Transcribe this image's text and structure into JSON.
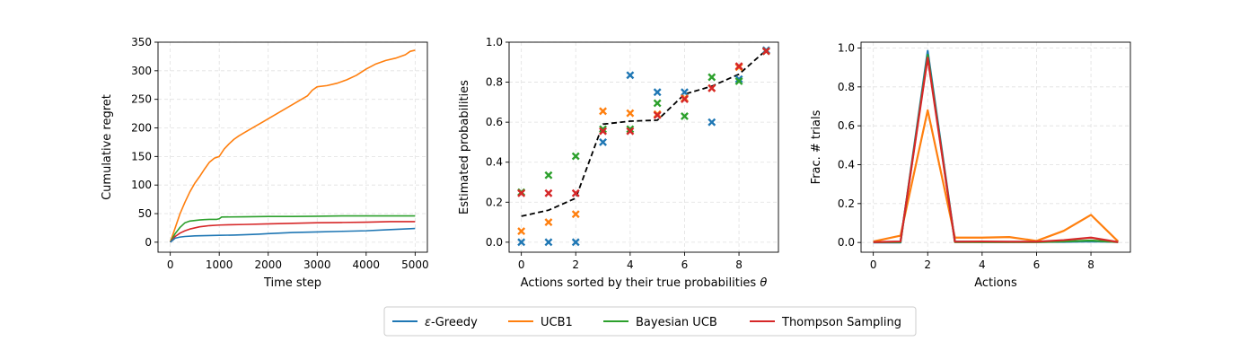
{
  "colors": {
    "eps_greedy": "#1f77b4",
    "ucb1": "#ff7f0e",
    "bayesian_ucb": "#2ca02c",
    "thompson": "#d62728",
    "true_prob": "#000000"
  },
  "legend": {
    "placement": "bottom-center",
    "entries": [
      {
        "key": "eps_greedy",
        "prefix": "ε",
        "label": "-Greedy"
      },
      {
        "key": "ucb1",
        "prefix": "",
        "label": "UCB1"
      },
      {
        "key": "bayesian_ucb",
        "prefix": "",
        "label": "Bayesian UCB"
      },
      {
        "key": "thompson",
        "prefix": "",
        "label": "Thompson Sampling"
      }
    ]
  },
  "chart_data": [
    {
      "type": "line",
      "xlabel": "Time step",
      "ylabel": "Cumulative regret",
      "xlim": [
        -250,
        5250
      ],
      "ylim": [
        -17.5,
        350
      ],
      "xticks": [
        "0",
        "1000",
        "2000",
        "3000",
        "4000",
        "5000"
      ],
      "xtick_values": [
        0,
        1000,
        2000,
        3000,
        4000,
        5000
      ],
      "yticks": [
        "0",
        "50",
        "100",
        "150",
        "200",
        "250",
        "300",
        "350"
      ],
      "ytick_values": [
        0,
        50,
        100,
        150,
        200,
        250,
        300,
        350
      ],
      "grid": true,
      "series": [
        {
          "key": "ucb1",
          "x": [
            0,
            100,
            200,
            300,
            400,
            500,
            600,
            700,
            800,
            900,
            1000,
            1100,
            1200,
            1300,
            1400,
            1500,
            1700,
            1900,
            2000,
            2200,
            2400,
            2600,
            2800,
            2900,
            3000,
            3200,
            3400,
            3600,
            3800,
            4000,
            4200,
            4400,
            4600,
            4800,
            4900,
            5000
          ],
          "y": [
            0,
            25,
            50,
            70,
            88,
            103,
            115,
            128,
            140,
            147,
            150,
            163,
            172,
            180,
            186,
            191,
            201,
            211,
            216,
            226,
            236,
            246,
            256,
            266,
            272,
            274,
            278,
            284,
            292,
            303,
            312,
            318,
            322,
            328,
            334,
            336
          ]
        },
        {
          "key": "bayesian_ucb",
          "x": [
            0,
            100,
            200,
            300,
            400,
            500,
            600,
            700,
            800,
            900,
            950,
            1000,
            1050,
            1500,
            2000,
            2500,
            3000,
            3500,
            4000,
            4500,
            5000
          ],
          "y": [
            0,
            15,
            26,
            34,
            37,
            38,
            39,
            39.5,
            40,
            40,
            40,
            41,
            44,
            44.5,
            45,
            45,
            45.5,
            46,
            46,
            46,
            46
          ]
        },
        {
          "key": "thompson",
          "x": [
            0,
            100,
            200,
            300,
            400,
            500,
            600,
            700,
            800,
            1000,
            1200,
            1500,
            2000,
            2500,
            3000,
            3500,
            4000,
            4500,
            5000
          ],
          "y": [
            0,
            10,
            16,
            20,
            23,
            25,
            27,
            28,
            29,
            30,
            30.5,
            31,
            32,
            33,
            34,
            34.5,
            35,
            36,
            36
          ]
        },
        {
          "key": "eps_greedy",
          "x": [
            0,
            100,
            200,
            300,
            500,
            700,
            1000,
            1300,
            1500,
            1800,
            2000,
            2500,
            3000,
            3500,
            4000,
            4500,
            5000
          ],
          "y": [
            0,
            7,
            9,
            10,
            11,
            11.5,
            12,
            12.5,
            13,
            14,
            15,
            17,
            18,
            19,
            20,
            22,
            24
          ]
        }
      ]
    },
    {
      "type": "scatter",
      "xlabel_prefix": "Actions sorted by their true probabilities ",
      "xlabel_symbol": "θ",
      "ylabel": "Estimated probabilities",
      "xlim": [
        -0.45,
        9.45
      ],
      "ylim": [
        -0.05,
        1.0
      ],
      "xticks": [
        "0",
        "2",
        "4",
        "6",
        "8"
      ],
      "xtick_values": [
        0,
        2,
        4,
        6,
        8
      ],
      "yticks": [
        "0.0",
        "0.2",
        "0.4",
        "0.6",
        "0.8",
        "1.0"
      ],
      "ytick_values": [
        0,
        0.2,
        0.4,
        0.6,
        0.8,
        1.0
      ],
      "grid": true,
      "true_line": {
        "key": "true_prob",
        "style": "dashed",
        "x": [
          0,
          1,
          2,
          3,
          4,
          5,
          6,
          7,
          8,
          9
        ],
        "y": [
          0.13,
          0.16,
          0.22,
          0.59,
          0.605,
          0.61,
          0.74,
          0.78,
          0.84,
          0.96
        ]
      },
      "series": [
        {
          "key": "eps_greedy",
          "marker": "x",
          "x": [
            0,
            1,
            2,
            3,
            4,
            5,
            6,
            7,
            8,
            9
          ],
          "y": [
            0.0,
            0.0,
            0.0,
            0.5,
            0.835,
            0.75,
            0.75,
            0.6,
            0.815,
            0.96
          ]
        },
        {
          "key": "ucb1",
          "marker": "x",
          "x": [
            0,
            1,
            2,
            3,
            4,
            5,
            6,
            7,
            8,
            9
          ],
          "y": [
            0.055,
            0.1,
            0.14,
            0.655,
            0.645,
            0.64,
            0.72,
            0.77,
            0.875,
            0.955
          ]
        },
        {
          "key": "bayesian_ucb",
          "marker": "x",
          "x": [
            0,
            1,
            2,
            3,
            4,
            5,
            6,
            7,
            8,
            9
          ],
          "y": [
            0.25,
            0.335,
            0.43,
            0.565,
            0.565,
            0.695,
            0.63,
            0.825,
            0.805,
            0.955
          ]
        },
        {
          "key": "thompson",
          "marker": "x",
          "x": [
            0,
            1,
            2,
            3,
            4,
            5,
            6,
            7,
            8,
            9
          ],
          "y": [
            0.245,
            0.245,
            0.245,
            0.555,
            0.555,
            0.635,
            0.715,
            0.77,
            0.88,
            0.955
          ]
        }
      ]
    },
    {
      "type": "line",
      "xlabel": "Actions",
      "ylabel": "Frac. # trials",
      "xlim": [
        -0.45,
        9.45
      ],
      "ylim": [
        -0.05,
        1.03
      ],
      "xticks": [
        "0",
        "2",
        "4",
        "6",
        "8"
      ],
      "xtick_values": [
        0,
        2,
        4,
        6,
        8
      ],
      "yticks": [
        "0.0",
        "0.2",
        "0.4",
        "0.6",
        "0.8",
        "1.0"
      ],
      "ytick_values": [
        0,
        0.2,
        0.4,
        0.6,
        0.8,
        1.0
      ],
      "grid": true,
      "series": [
        {
          "key": "ucb1",
          "x": [
            0,
            1,
            2,
            3,
            4,
            5,
            6,
            7,
            8,
            9
          ],
          "y": [
            0.005,
            0.035,
            0.68,
            0.025,
            0.025,
            0.028,
            0.008,
            0.06,
            0.142,
            0.005
          ]
        },
        {
          "key": "eps_greedy",
          "x": [
            0,
            1,
            2,
            3,
            4,
            5,
            6,
            7,
            8,
            9
          ],
          "y": [
            0.0,
            0.0,
            0.985,
            0.005,
            0.003,
            0.003,
            0.003,
            0.003,
            0.005,
            0.003
          ]
        },
        {
          "key": "bayesian_ucb",
          "x": [
            0,
            1,
            2,
            3,
            4,
            5,
            6,
            7,
            8,
            9
          ],
          "y": [
            0.002,
            0.002,
            0.965,
            0.002,
            0.002,
            0.002,
            0.002,
            0.005,
            0.01,
            0.002
          ]
        },
        {
          "key": "thompson",
          "x": [
            0,
            1,
            2,
            3,
            4,
            5,
            6,
            7,
            8,
            9
          ],
          "y": [
            0.002,
            0.005,
            0.95,
            0.004,
            0.005,
            0.004,
            0.004,
            0.012,
            0.025,
            0.002
          ]
        }
      ]
    }
  ]
}
